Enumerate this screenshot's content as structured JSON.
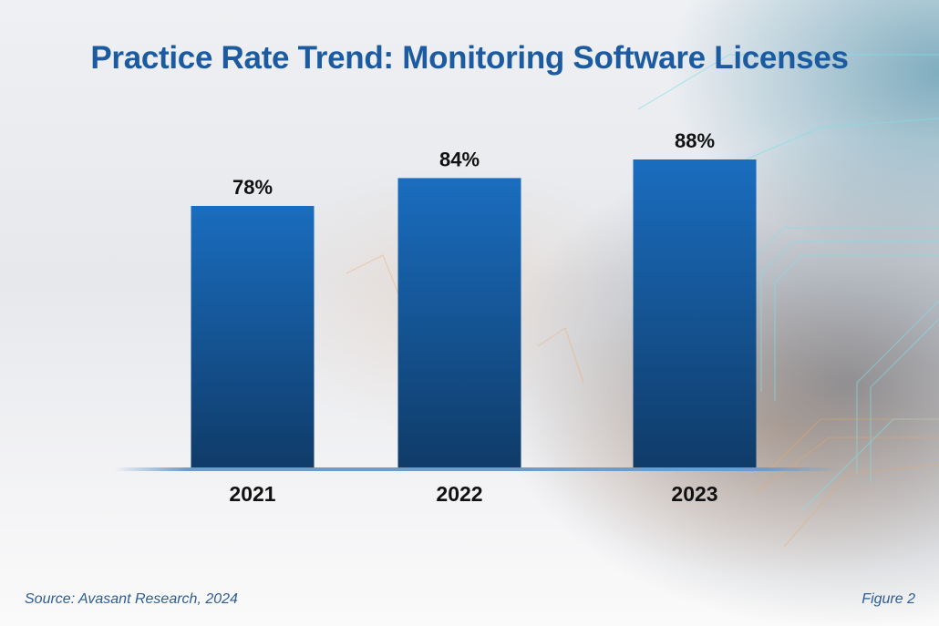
{
  "chart_data": {
    "type": "bar",
    "title": "Practice Rate Trend: Monitoring Software Licenses",
    "categories": [
      "2021",
      "2022",
      "2023"
    ],
    "values": [
      78,
      84,
      88
    ],
    "value_labels": [
      "78%",
      "84%",
      "88%"
    ],
    "unit": "%",
    "xlabel": "",
    "ylabel": "",
    "y_axis_visible": false,
    "grid": false,
    "legend": "none",
    "colors": {
      "bar_top": "#1a6dbf",
      "bar_bottom": "#0f3b68",
      "title": "#1c5b9f",
      "baseline": "#6a9ccc"
    }
  },
  "footer": {
    "source": "Source: Avasant Research, 2024",
    "figure": "Figure 2"
  }
}
